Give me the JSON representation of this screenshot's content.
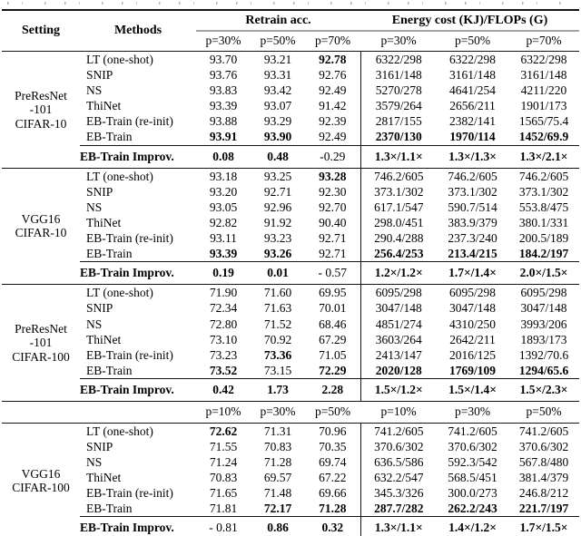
{
  "table": {
    "header": {
      "setting": "Setting",
      "methods": "Methods",
      "group1": "Retrain acc.",
      "group2": "Energy cost (KJ)/FLOPs (G)",
      "p_labels": [
        "p=30%",
        "p=50%",
        "p=70%",
        "p=30%",
        "p=50%",
        "p=70%"
      ]
    },
    "blocks": [
      {
        "setting_lines": [
          "PreResNet",
          "-101",
          "CIFAR-10"
        ],
        "rows": [
          {
            "method": "LT (one-shot)",
            "cells": [
              "93.70",
              "93.21",
              "92.78",
              "6322/298",
              "6322/298",
              "6322/298"
            ],
            "bold": [
              0,
              0,
              1,
              0,
              0,
              0
            ]
          },
          {
            "method": "SNIP",
            "cells": [
              "93.76",
              "93.31",
              "92.76",
              "3161/148",
              "3161/148",
              "3161/148"
            ],
            "bold": [
              0,
              0,
              0,
              0,
              0,
              0
            ]
          },
          {
            "method": "NS",
            "cells": [
              "93.83",
              "93.42",
              "92.49",
              "5270/278",
              "4641/254",
              "4211/220"
            ],
            "bold": [
              0,
              0,
              0,
              0,
              0,
              0
            ]
          },
          {
            "method": "ThiNet",
            "cells": [
              "93.39",
              "93.07",
              "91.42",
              "3579/264",
              "2656/211",
              "1901/173"
            ],
            "bold": [
              0,
              0,
              0,
              0,
              0,
              0
            ]
          },
          {
            "method": "EB-Train (re-init)",
            "cells": [
              "93.88",
              "93.29",
              "92.39",
              "2817/155",
              "2382/141",
              "1565/75.4"
            ],
            "bold": [
              0,
              0,
              0,
              0,
              0,
              0
            ]
          },
          {
            "method": "EB-Train",
            "cells": [
              "93.91",
              "93.90",
              "92.49",
              "2370/130",
              "1970/114",
              "1452/69.9"
            ],
            "bold": [
              1,
              1,
              0,
              1,
              1,
              1
            ]
          }
        ],
        "improv": {
          "label": "EB-Train Improv.",
          "cells": [
            "0.08",
            "0.48",
            "-0.29",
            "1.3×/1.1×",
            "1.3×/1.3×",
            "1.3×/2.1×"
          ],
          "bold": [
            1,
            1,
            0,
            1,
            1,
            1
          ]
        }
      },
      {
        "setting_lines": [
          "VGG16",
          "CIFAR-10"
        ],
        "rows": [
          {
            "method": "LT (one-shot)",
            "cells": [
              "93.18",
              "93.25",
              "93.28",
              "746.2/605",
              "746.2/605",
              "746.2/605"
            ],
            "bold": [
              0,
              0,
              1,
              0,
              0,
              0
            ]
          },
          {
            "method": "SNIP",
            "cells": [
              "93.20",
              "92.71",
              "92.30",
              "373.1/302",
              "373.1/302",
              "373.1/302"
            ],
            "bold": [
              0,
              0,
              0,
              0,
              0,
              0
            ]
          },
          {
            "method": "NS",
            "cells": [
              "93.05",
              "92.96",
              "92.70",
              "617.1/547",
              "590.7/514",
              "553.8/475"
            ],
            "bold": [
              0,
              0,
              0,
              0,
              0,
              0
            ]
          },
          {
            "method": "ThiNet",
            "cells": [
              "92.82",
              "91.92",
              "90.40",
              "298.0/451",
              "383.9/379",
              "380.1/331"
            ],
            "bold": [
              0,
              0,
              0,
              0,
              0,
              0
            ]
          },
          {
            "method": "EB-Train (re-init)",
            "cells": [
              "93.11",
              "93.23",
              "92.71",
              "290.4/288",
              "237.3/240",
              "200.5/189"
            ],
            "bold": [
              0,
              0,
              0,
              0,
              0,
              0
            ]
          },
          {
            "method": "EB-Train",
            "cells": [
              "93.39",
              "93.26",
              "92.71",
              "256.4/253",
              "213.4/215",
              "184.2/197"
            ],
            "bold": [
              1,
              1,
              0,
              1,
              1,
              1
            ]
          }
        ],
        "improv": {
          "label": "EB-Train Improv.",
          "cells": [
            "0.19",
            "0.01",
            "- 0.57",
            "1.2×/1.2×",
            "1.7×/1.4×",
            "2.0×/1.5×"
          ],
          "bold": [
            1,
            1,
            0,
            1,
            1,
            1
          ]
        }
      },
      {
        "setting_lines": [
          "PreResNet",
          "-101",
          "CIFAR-100"
        ],
        "rows": [
          {
            "method": "LT (one-shot)",
            "cells": [
              "71.90",
              "71.60",
              "69.95",
              "6095/298",
              "6095/298",
              "6095/298"
            ],
            "bold": [
              0,
              0,
              0,
              0,
              0,
              0
            ]
          },
          {
            "method": "SNIP",
            "cells": [
              "72.34",
              "71.63",
              "70.01",
              "3047/148",
              "3047/148",
              "3047/148"
            ],
            "bold": [
              0,
              0,
              0,
              0,
              0,
              0
            ]
          },
          {
            "method": "NS",
            "cells": [
              "72.80",
              "71.52",
              "68.46",
              "4851/274",
              "4310/250",
              "3993/206"
            ],
            "bold": [
              0,
              0,
              0,
              0,
              0,
              0
            ]
          },
          {
            "method": "ThiNet",
            "cells": [
              "73.10",
              "70.92",
              "67.29",
              "3603/264",
              "2642/211",
              "1893/173"
            ],
            "bold": [
              0,
              0,
              0,
              0,
              0,
              0
            ]
          },
          {
            "method": "EB-Train (re-init)",
            "cells": [
              "73.23",
              "73.36",
              "71.05",
              "2413/147",
              "2016/125",
              "1392/70.6"
            ],
            "bold": [
              0,
              1,
              0,
              0,
              0,
              0
            ]
          },
          {
            "method": "EB-Train",
            "cells": [
              "73.52",
              "73.15",
              "72.29",
              "2020/128",
              "1769/109",
              "1294/65.6"
            ],
            "bold": [
              1,
              0,
              1,
              1,
              1,
              1
            ]
          }
        ],
        "improv": {
          "label": "EB-Train Improv.",
          "cells": [
            "0.42",
            "1.73",
            "2.28",
            "1.5×/1.2×",
            "1.5×/1.4×",
            "1.5×/2.3×"
          ],
          "bold": [
            1,
            1,
            1,
            1,
            1,
            1
          ]
        }
      },
      {
        "setting_lines": [
          "VGG16",
          "CIFAR-100"
        ],
        "p_labels": [
          "p=10%",
          "p=30%",
          "p=50%",
          "p=10%",
          "p=30%",
          "p=50%"
        ],
        "rows": [
          {
            "method": "LT (one-shot)",
            "cells": [
              "72.62",
              "71.31",
              "70.96",
              "741.2/605",
              "741.2/605",
              "741.2/605"
            ],
            "bold": [
              1,
              0,
              0,
              0,
              0,
              0
            ]
          },
          {
            "method": "SNIP",
            "cells": [
              "71.55",
              "70.83",
              "70.35",
              "370.6/302",
              "370.6/302",
              "370.6/302"
            ],
            "bold": [
              0,
              0,
              0,
              0,
              0,
              0
            ]
          },
          {
            "method": "NS",
            "cells": [
              "71.24",
              "71.28",
              "69.74",
              "636.5/586",
              "592.3/542",
              "567.8/480"
            ],
            "bold": [
              0,
              0,
              0,
              0,
              0,
              0
            ]
          },
          {
            "method": "ThiNet",
            "cells": [
              "70.83",
              "69.57",
              "67.22",
              "632.2/547",
              "568.5/451",
              "381.4/379"
            ],
            "bold": [
              0,
              0,
              0,
              0,
              0,
              0
            ]
          },
          {
            "method": "EB-Train (re-init)",
            "cells": [
              "71.65",
              "71.48",
              "69.66",
              "345.3/326",
              "300.0/273",
              "246.8/212"
            ],
            "bold": [
              0,
              0,
              0,
              0,
              0,
              0
            ]
          },
          {
            "method": "EB-Train",
            "cells": [
              "71.81",
              "72.17",
              "71.28",
              "287.7/282",
              "262.2/243",
              "221.7/197"
            ],
            "bold": [
              0,
              1,
              1,
              1,
              1,
              1
            ]
          }
        ],
        "improv": {
          "label": "EB-Train Improv.",
          "cells": [
            "- 0.81",
            "0.86",
            "0.32",
            "1.3×/1.1×",
            "1.4×/1.2×",
            "1.7×/1.5×"
          ],
          "bold": [
            0,
            1,
            1,
            1,
            1,
            1
          ]
        }
      }
    ]
  }
}
